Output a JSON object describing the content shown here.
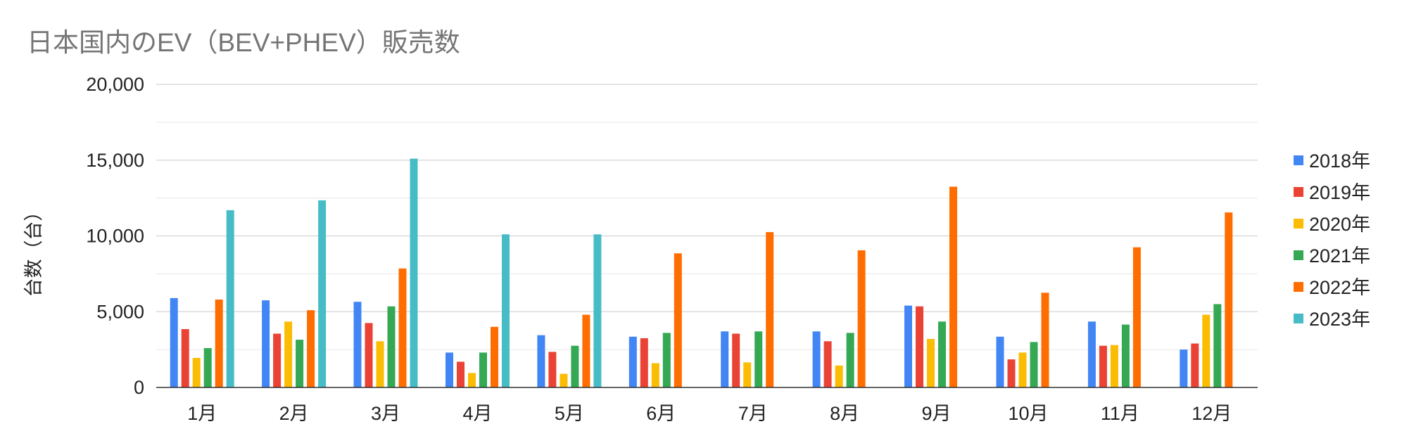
{
  "chart_data": {
    "type": "bar",
    "title": "日本国内のEV（BEV+PHEV）販売数",
    "xlabel": "",
    "ylabel": "台数（台）",
    "ylim": [
      0,
      20000
    ],
    "yticks": [
      0,
      5000,
      10000,
      15000,
      20000
    ],
    "ytick_labels": [
      "0",
      "5,000",
      "10,000",
      "15,000",
      "20,000"
    ],
    "minor_grid_step": 2500,
    "grid": true,
    "legend_position": "right",
    "categories": [
      "1月",
      "2月",
      "3月",
      "4月",
      "5月",
      "6月",
      "7月",
      "8月",
      "9月",
      "10月",
      "11月",
      "12月"
    ],
    "series": [
      {
        "name": "2018年",
        "color": "#4285F4",
        "values": [
          5900,
          5750,
          5650,
          2300,
          3450,
          3350,
          3700,
          3700,
          5400,
          3350,
          4350,
          2500
        ]
      },
      {
        "name": "2019年",
        "color": "#EA4335",
        "values": [
          3850,
          3550,
          4250,
          1700,
          2350,
          3250,
          3550,
          3050,
          5350,
          1850,
          2750,
          2900
        ]
      },
      {
        "name": "2020年",
        "color": "#FBBC04",
        "values": [
          1950,
          4350,
          3050,
          950,
          900,
          1600,
          1650,
          1450,
          3200,
          2300,
          2800,
          4800
        ]
      },
      {
        "name": "2021年",
        "color": "#34A853",
        "values": [
          2600,
          3150,
          5350,
          2300,
          2750,
          3600,
          3700,
          3600,
          4350,
          3000,
          4150,
          5500
        ]
      },
      {
        "name": "2022年",
        "color": "#FF6D01",
        "values": [
          5800,
          5100,
          7850,
          4000,
          4800,
          8850,
          10250,
          9050,
          13250,
          6250,
          9250,
          11550
        ]
      },
      {
        "name": "2023年",
        "color": "#46BDC6",
        "values": [
          11700,
          12350,
          15100,
          10100,
          10100,
          null,
          null,
          null,
          null,
          null,
          null,
          null
        ]
      }
    ]
  }
}
